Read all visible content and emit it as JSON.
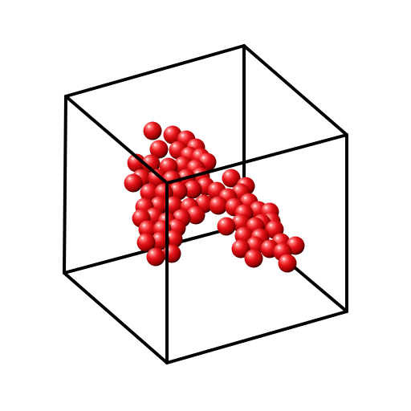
{
  "scene": {
    "background_color": "#ffffff",
    "box_edge_color": "#000000",
    "sphere_color": "#e8141b",
    "sphere_highlight_color": "#ffffff",
    "sphere_shadow_color": "#3a0000",
    "sphere_count": 70,
    "box_edge_count": 12
  }
}
